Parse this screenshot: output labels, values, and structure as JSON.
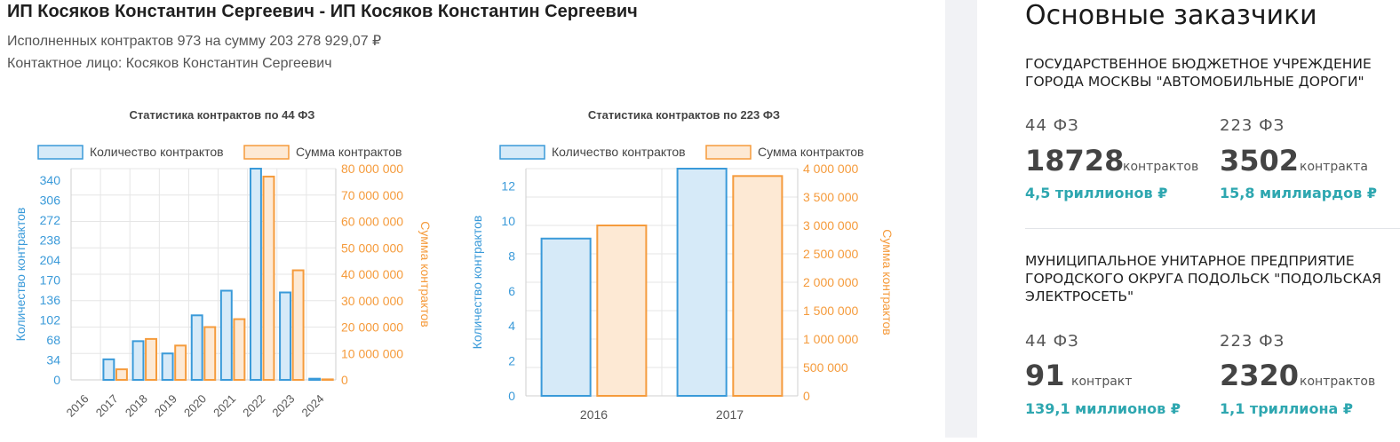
{
  "header": {
    "title": "ИП Косяков Константин Сергеевич - ИП Косяков Константин Сергеевич",
    "contracts_line": "Исполненных контрактов 973 на сумму 203 278 929,07 ₽",
    "contact_line": "Контактное лицо: Косяков Константин Сергеевич"
  },
  "colors": {
    "count": "#3a9ad9",
    "count_fill": "#d6eaf8",
    "sum": "#f59b3c",
    "sum_fill": "#fde9d4",
    "accent": "#2ea7b0"
  },
  "chart_data": [
    {
      "type": "bar",
      "title": "Статистика контрактов по 44 ФЗ",
      "legend": [
        "Количество контрактов",
        "Сумма контрактов"
      ],
      "categories": [
        "2016",
        "2017",
        "2018",
        "2019",
        "2020",
        "2021",
        "2022",
        "2023",
        "2024"
      ],
      "series": [
        {
          "name": "Количество контрактов",
          "axis": "left",
          "values": [
            0,
            35,
            66,
            45,
            110,
            152,
            360,
            149,
            2
          ]
        },
        {
          "name": "Сумма контрактов",
          "axis": "right",
          "values": [
            0,
            4000000,
            15500000,
            13000000,
            20000000,
            23000000,
            77000000,
            41500000,
            200000
          ]
        }
      ],
      "ylabel": "Количество контрактов",
      "y2label": "Сумма контрактов",
      "yticks": [
        "0",
        "34",
        "68",
        "102",
        "136",
        "170",
        "204",
        "238",
        "272",
        "306",
        "340"
      ],
      "y2ticks": [
        "0",
        "10 000 000",
        "20 000 000",
        "30 000 000",
        "40 000 000",
        "50 000 000",
        "60 000 000",
        "70 000 000",
        "80 000 000"
      ],
      "ylim": [
        0,
        360
      ],
      "y2lim": [
        0,
        80000000
      ]
    },
    {
      "type": "bar",
      "title": "Статистика контрактов по 223 ФЗ",
      "legend": [
        "Количество контрактов",
        "Сумма контрактов"
      ],
      "categories": [
        "2016",
        "2017"
      ],
      "series": [
        {
          "name": "Количество контрактов",
          "axis": "left",
          "values": [
            9,
            13
          ]
        },
        {
          "name": "Сумма контрактов",
          "axis": "right",
          "values": [
            3000000,
            3870000
          ]
        }
      ],
      "ylabel": "Количество контрактов",
      "y2label": "Сумма контрактов",
      "yticks": [
        "0",
        "2",
        "4",
        "6",
        "8",
        "10",
        "12"
      ],
      "y2ticks": [
        "0",
        "500 000",
        "1 000 000",
        "1 500 000",
        "2 000 000",
        "2 500 000",
        "3 000 000",
        "3 500 000",
        "4 000 000"
      ],
      "ylim": [
        0,
        13
      ],
      "y2lim": [
        0,
        4000000
      ]
    }
  ],
  "sidebar": {
    "title": "Основные заказчики",
    "customers": [
      {
        "name": "ГОСУДАРСТВЕННОЕ БЮДЖЕТНОЕ УЧРЕЖДЕНИЕ ГОРОДА МОСКВЫ \"АВТОМОБИЛЬНЫЕ ДОРОГИ\"",
        "law44": {
          "label": "44 ФЗ",
          "count": "18728",
          "unit": "контрактов",
          "sum": "4,5 триллионов ₽"
        },
        "law223": {
          "label": "223 ФЗ",
          "count": "3502",
          "unit": "контракта",
          "sum": "15,8 миллиардов ₽"
        }
      },
      {
        "name": "МУНИЦИПАЛЬНОЕ УНИТАРНОЕ ПРЕДПРИЯТИЕ ГОРОДСКОГО ОКРУГА ПОДОЛЬСК \"ПОДОЛЬСКАЯ ЭЛЕКТРОСЕТЬ\"",
        "law44": {
          "label": "44 ФЗ",
          "count": "91",
          "unit": "контракт",
          "sum": "139,1 миллионов ₽"
        },
        "law223": {
          "label": "223 ФЗ",
          "count": "2320",
          "unit": "контрактов",
          "sum": "1,1 триллиона ₽"
        }
      }
    ]
  }
}
